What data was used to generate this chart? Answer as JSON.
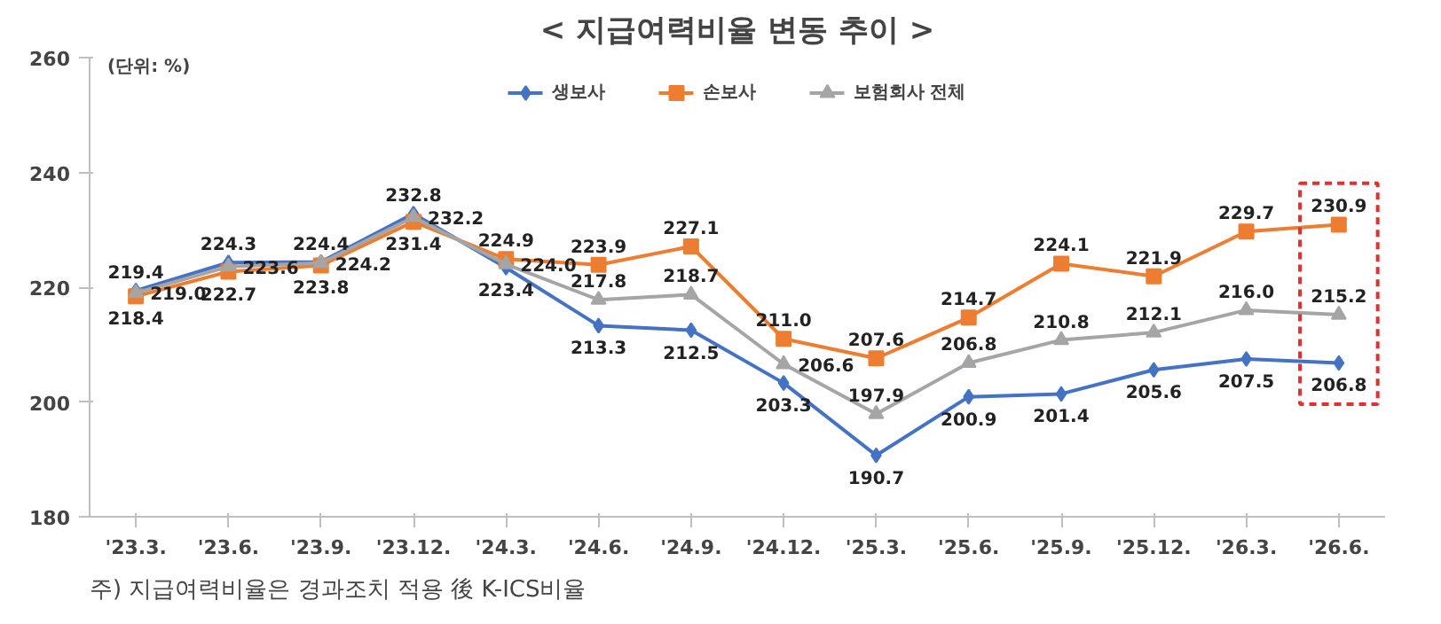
{
  "chart_data": {
    "type": "line",
    "title": "< 지급여력비율 변동 추이 >",
    "annotations": [
      "(단위: %)",
      "주) 지급여력비율은 경과조치 적용 後 K-ICS비율"
    ],
    "categories": [
      "'23.3.",
      "'23.6.",
      "'23.9.",
      "'23.12.",
      "'24.3.",
      "'24.6.",
      "'24.9.",
      "'24.12.",
      "'25.3.",
      "'25.6.",
      "'25.9.",
      "'25.12.",
      "'26.3.",
      "'26.6."
    ],
    "series": [
      {
        "name": "생보사",
        "color": "#4472c4",
        "marker": "diamond",
        "values": [
          219.4,
          224.3,
          224.4,
          232.8,
          223.4,
          213.3,
          212.5,
          203.3,
          190.7,
          200.9,
          201.4,
          205.6,
          207.5,
          206.8
        ],
        "value_labels": [
          "219.4",
          "224.3",
          "224.4",
          "232.8",
          "223.4",
          "213.3",
          "212.5",
          "203.3",
          "190.7",
          "200.9",
          "201.4",
          "205.6",
          "207.5",
          "206.8"
        ]
      },
      {
        "name": "손보사",
        "color": "#ed7d31",
        "marker": "square",
        "values": [
          218.4,
          222.7,
          223.8,
          231.4,
          224.9,
          223.9,
          227.1,
          211.0,
          207.6,
          214.7,
          224.1,
          221.9,
          229.7,
          230.9
        ],
        "value_labels": [
          "218.4",
          "222.7",
          "223.8",
          "231.4",
          "224.9",
          "223.9",
          "227.1",
          "211.0",
          "207.6",
          "214.7",
          "224.1",
          "221.9",
          "229.7",
          "230.9"
        ]
      },
      {
        "name": "보험회사 전체",
        "color": "#a5a5a5",
        "marker": "triangle",
        "values": [
          219.0,
          223.6,
          224.2,
          232.2,
          224.0,
          217.8,
          218.7,
          206.6,
          197.9,
          206.8,
          210.8,
          212.1,
          216.0,
          215.2
        ],
        "value_labels": [
          "219.0",
          "223.6",
          "224.2",
          "232.2",
          "224.0",
          "217.8",
          "218.7",
          "206.6",
          "197.9",
          "206.8",
          "210.8",
          "212.1",
          "216.0",
          "215.2"
        ]
      }
    ],
    "ylim": [
      180,
      260
    ],
    "yticks": [
      180,
      200,
      220,
      240,
      260
    ],
    "grid": false,
    "legend": "top"
  }
}
